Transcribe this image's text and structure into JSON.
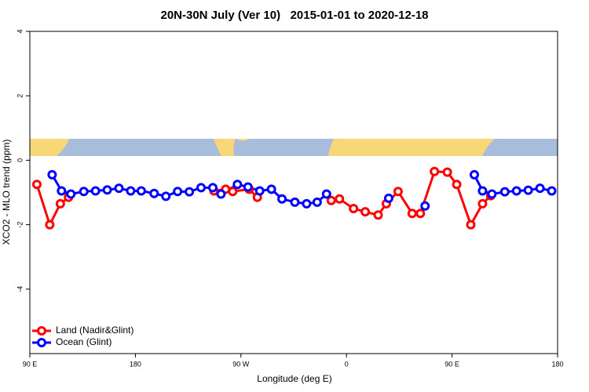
{
  "chart_data": {
    "type": "line",
    "title": "20N-30N July (Ver 10)   2015-01-01 to 2020-12-18",
    "x_label": "Longitude (deg E)",
    "y_label": "XCO2 - MLO trend (ppm)",
    "xlim": [
      90,
      540
    ],
    "xticks": [
      {
        "value": 90,
        "label": "90 E"
      },
      180,
      {
        "value": 270,
        "label": "90 W"
      },
      {
        "value": 360,
        "label": "0"
      },
      {
        "value": 450,
        "label": "90 E"
      },
      {
        "value": 540,
        "label": "180"
      }
    ],
    "ylim": [
      -6,
      4
    ],
    "yticks": [
      -4,
      -2,
      0,
      2,
      4
    ],
    "legend": "bottomleft",
    "series": [
      {
        "name": "Land (Nadir&Glint)",
        "color": "#ff0000",
        "x": [
          96,
          107,
          116,
          123,
          null,
          247,
          257,
          263,
          277,
          284,
          null,
          347,
          354,
          366,
          376,
          387,
          394,
          404,
          416,
          423,
          435,
          446,
          454,
          466,
          476,
          483
        ],
        "values": [
          -0.75,
          -2.0,
          -1.35,
          -1.15,
          null,
          -0.95,
          -0.9,
          -0.97,
          -0.9,
          -1.15,
          null,
          -1.25,
          -1.2,
          -1.5,
          -1.6,
          -1.7,
          -1.35,
          -0.97,
          -1.65,
          -1.65,
          -0.35,
          -0.37,
          -0.75,
          -2.0,
          -1.35,
          -1.1
        ]
      },
      {
        "name": "Ocean (Glint)",
        "color": "#0000ff",
        "x": [
          109,
          117,
          125,
          136,
          146,
          156,
          166,
          176,
          185,
          196,
          206,
          216,
          226,
          236,
          246,
          253,
          267,
          276,
          286,
          296,
          305,
          316,
          326,
          335,
          343,
          null,
          396,
          null,
          427,
          null,
          469,
          476,
          484,
          495,
          505,
          515,
          525,
          535
        ],
        "values": [
          -0.45,
          -0.95,
          -1.05,
          -0.97,
          -0.95,
          -0.92,
          -0.87,
          -0.95,
          -0.95,
          -1.03,
          -1.12,
          -0.97,
          -0.98,
          -0.85,
          -0.85,
          -1.05,
          -0.75,
          -0.83,
          -0.95,
          -0.9,
          -1.2,
          -1.3,
          -1.35,
          -1.3,
          -1.05,
          null,
          -1.18,
          null,
          -1.42,
          null,
          -0.45,
          -0.95,
          -1.05,
          -0.98,
          -0.95,
          -0.93,
          -0.87,
          -0.95
        ]
      }
    ]
  }
}
